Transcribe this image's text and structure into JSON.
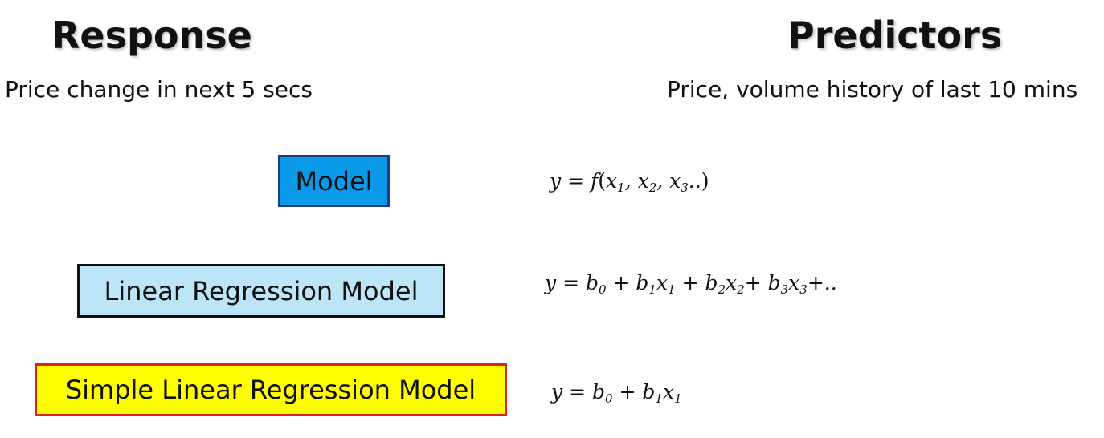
{
  "response": {
    "title": "Response",
    "description": "Price change in next 5 secs"
  },
  "predictors": {
    "title": "Predictors",
    "description": "Price, volume history of last 10 mins"
  },
  "models": [
    {
      "label": "Model",
      "fill_color": "#0b9aea",
      "border_color": "#1f3c7a"
    },
    {
      "label": "Linear Regression Model",
      "fill_color": "#bde5f8",
      "border_color": "#111111"
    },
    {
      "label": "Simple Linear Regression Model",
      "fill_color": "#ffff00",
      "border_color": "#e0221c"
    }
  ],
  "equations": {
    "model": "y = f(x1, x2, x3..)",
    "linear": "y = b0 + b1x1 + b2x2+ b3x3+..",
    "simple": "y = b0 + b1x1"
  }
}
